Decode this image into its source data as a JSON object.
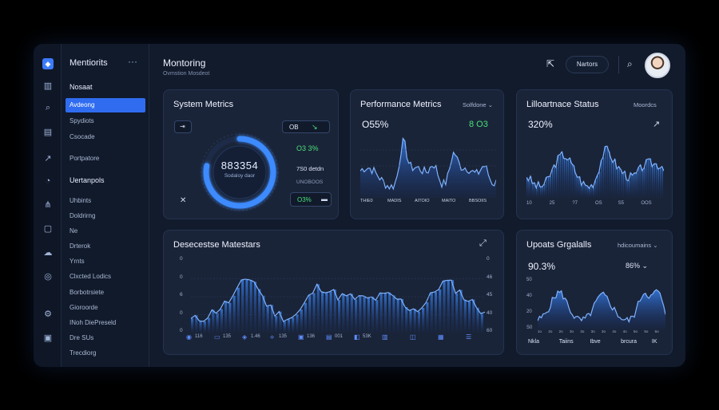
{
  "rail": {
    "icons": [
      "app-logo-icon",
      "bar-chart-icon",
      "search-icon",
      "table-icon",
      "trend-icon",
      "gauge-icon",
      "network-icon",
      "doc-icon",
      "cloud-icon",
      "globe-icon",
      "settings-icon",
      "lock-icon"
    ]
  },
  "sidebar": {
    "brand": "Mentiorits",
    "items": [
      {
        "label": "Nosaat",
        "kind": "head"
      },
      {
        "label": "Avdeong",
        "kind": "active"
      },
      {
        "label": "Spydiots",
        "kind": "normal"
      },
      {
        "label": "Csocade",
        "kind": "normal"
      },
      {
        "label": "Portpatore",
        "kind": "normal"
      },
      {
        "label": "Uertanpols",
        "kind": "head"
      },
      {
        "label": "Uhbints",
        "kind": "normal"
      },
      {
        "label": "Doldrirng",
        "kind": "normal"
      },
      {
        "label": "Ne",
        "kind": "normal"
      },
      {
        "label": "Drterok",
        "kind": "normal"
      },
      {
        "label": "Yrnts",
        "kind": "normal"
      },
      {
        "label": "Clxcted Lodics",
        "kind": "normal"
      },
      {
        "label": "Borbotrsiete",
        "kind": "normal"
      },
      {
        "label": "Gioroorde",
        "kind": "normal"
      },
      {
        "label": "INoh DiePreseld",
        "kind": "normal"
      },
      {
        "label": "Dre SUs",
        "kind": "normal"
      },
      {
        "label": "Trecdiorg",
        "kind": "normal"
      }
    ]
  },
  "header": {
    "title": "Montoring",
    "subtitle": "Ovmstion Mosdeot",
    "pill_label": "Nartors"
  },
  "system": {
    "title": "System Metrics",
    "gauge_value": "883354",
    "gauge_caption": "Sodaloy daor",
    "gauge_fraction": 0.78,
    "badge": "OB",
    "stat1": "O3 3%",
    "stat2": "7S0 detdn",
    "stat3": "UNOBOOS",
    "stat4": "O3%"
  },
  "performance": {
    "title": "Performance Metrics",
    "dropdown": "Solfdone",
    "value": "O55%",
    "delta": "8 O3",
    "xlabels": [
      "THIE0",
      "MADIS",
      "AITOIO",
      "MAITO",
      "BBSOIIS"
    ]
  },
  "maintenance": {
    "title": "Lilloartnace Status",
    "dropdown": "Moordcs",
    "value": "320%",
    "xlabels": [
      "10",
      "25",
      "?7",
      "OS",
      "S5",
      "OOS"
    ]
  },
  "main_chart": {
    "title": "Desecestse Matestars",
    "y_left": [
      "0",
      "0",
      "6",
      "0",
      "0"
    ],
    "y_right": [
      "0",
      "46",
      "45",
      "40",
      "60"
    ],
    "toolbar": [
      "116",
      "135",
      "1.46",
      "135",
      "136",
      "001",
      "53K"
    ]
  },
  "uploads": {
    "title": "Upoats Grgalalls",
    "dropdown": "hdicoumains",
    "value": "90.3%",
    "secondary": "86%",
    "y": [
      "50",
      "40",
      "20",
      "S0"
    ],
    "xlabels": [
      "1o",
      "2o",
      "2o",
      "3o",
      "3o",
      "3o",
      "3o",
      "4o",
      "4o",
      "5o",
      "5o",
      "6o"
    ],
    "legend": [
      "Nkla",
      "Taiins",
      "Ibve",
      "brcura",
      "IK"
    ]
  },
  "colors": {
    "accent": "#3c7bff",
    "positive": "#49e07a",
    "card": "#1a2438",
    "background": "#121b2c"
  }
}
